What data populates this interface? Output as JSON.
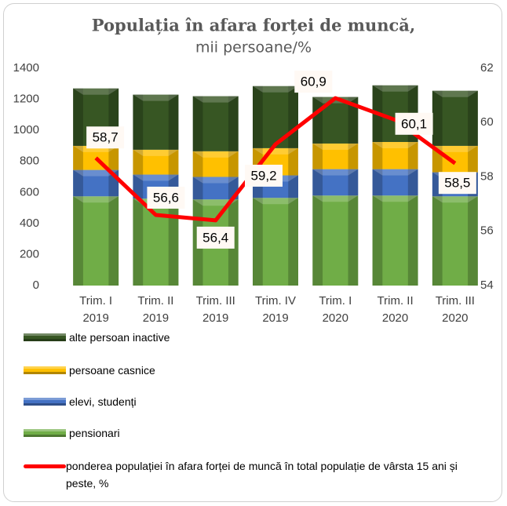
{
  "chart_data": {
    "type": "bar",
    "title": "Populația în afara forței de muncă,",
    "subtitle": "mii persoane/%",
    "categories": [
      [
        "Trim. I",
        "2019"
      ],
      [
        "Trim. II",
        "2019"
      ],
      [
        "Trim. III",
        "2019"
      ],
      [
        "Trim. IV",
        "2019"
      ],
      [
        "Trim. I",
        "2020"
      ],
      [
        "Trim. II",
        "2020"
      ],
      [
        "Trim. III",
        "2020"
      ]
    ],
    "ylim": [
      0,
      1400
    ],
    "yticks": [
      0,
      200,
      400,
      600,
      800,
      1000,
      1200,
      1400
    ],
    "y2lim": [
      54,
      62
    ],
    "y2ticks": [
      54,
      56,
      58,
      60,
      62
    ],
    "series": [
      {
        "name": "pensionari",
        "color": "#70ad47",
        "values": [
          575,
          560,
          555,
          565,
          580,
          580,
          575
        ]
      },
      {
        "name": "elevi, studenți",
        "color": "#4472c4",
        "values": [
          170,
          155,
          145,
          145,
          170,
          170,
          155
        ]
      },
      {
        "name": "persoane casnice",
        "color": "#ffc000",
        "values": [
          155,
          160,
          165,
          175,
          165,
          175,
          170
        ]
      },
      {
        "name": "alte persoan inactive",
        "color": "#375623",
        "values": [
          370,
          355,
          355,
          400,
          300,
          365,
          355
        ]
      },
      {
        "name": "ponderea populației în afara forței de muncă în total populație de vârsta 15 ani și peste, %",
        "type": "line",
        "axis": "y2",
        "color": "#ff0000",
        "values": [
          58.7,
          56.6,
          56.4,
          59.2,
          60.9,
          60.1,
          58.5
        ],
        "value_labels": [
          "58,7",
          "56,6",
          "56,4",
          "59,2",
          "60,9",
          "60,1",
          "58,5"
        ]
      }
    ]
  }
}
